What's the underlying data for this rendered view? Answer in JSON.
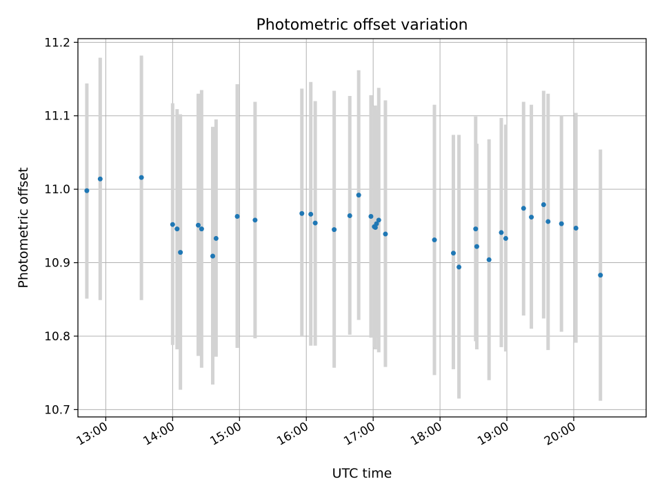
{
  "chart_data": {
    "type": "scatter",
    "title": "Photometric offset variation",
    "xlabel": "UTC time",
    "ylabel": "Photometric offset",
    "x_tick_labels": [
      "13:00",
      "14:00",
      "15:00",
      "16:00",
      "17:00",
      "18:00",
      "19:00",
      "20:00"
    ],
    "y_tick_labels": [
      "10.7",
      "10.8",
      "10.9",
      "11.0",
      "11.1",
      "11.2"
    ],
    "xlim": [
      "12:35",
      "21:05"
    ],
    "ylim": [
      10.69,
      11.205
    ],
    "grid": true,
    "error_bar_color": "#d3d3d3",
    "point_color": "#1f77b4",
    "points": [
      {
        "x": "12:43",
        "y": 10.998,
        "lo": 10.851,
        "hi": 11.144
      },
      {
        "x": "12:55",
        "y": 11.014,
        "lo": 10.849,
        "hi": 11.179
      },
      {
        "x": "13:32",
        "y": 11.016,
        "lo": 10.849,
        "hi": 11.182
      },
      {
        "x": "14:00",
        "y": 10.952,
        "lo": 10.788,
        "hi": 11.117
      },
      {
        "x": "14:04",
        "y": 10.946,
        "lo": 10.782,
        "hi": 11.109
      },
      {
        "x": "14:07",
        "y": 10.914,
        "lo": 10.727,
        "hi": 11.102
      },
      {
        "x": "14:23",
        "y": 10.951,
        "lo": 10.773,
        "hi": 11.13
      },
      {
        "x": "14:26",
        "y": 10.946,
        "lo": 10.757,
        "hi": 11.135
      },
      {
        "x": "14:36",
        "y": 10.909,
        "lo": 10.734,
        "hi": 11.085
      },
      {
        "x": "14:39",
        "y": 10.933,
        "lo": 10.772,
        "hi": 11.095
      },
      {
        "x": "14:58",
        "y": 10.963,
        "lo": 10.784,
        "hi": 11.143
      },
      {
        "x": "15:14",
        "y": 10.958,
        "lo": 10.797,
        "hi": 11.119
      },
      {
        "x": "15:56",
        "y": 10.967,
        "lo": 10.8,
        "hi": 11.137
      },
      {
        "x": "16:04",
        "y": 10.966,
        "lo": 10.787,
        "hi": 11.146
      },
      {
        "x": "16:08",
        "y": 10.954,
        "lo": 10.787,
        "hi": 11.12
      },
      {
        "x": "16:25",
        "y": 10.945,
        "lo": 10.757,
        "hi": 11.134
      },
      {
        "x": "16:39",
        "y": 10.964,
        "lo": 10.802,
        "hi": 11.127
      },
      {
        "x": "16:47",
        "y": 10.992,
        "lo": 10.822,
        "hi": 11.162
      },
      {
        "x": "16:58",
        "y": 10.963,
        "lo": 10.798,
        "hi": 11.128
      },
      {
        "x": "17:01",
        "y": 10.949,
        "lo": 10.785,
        "hi": 11.113
      },
      {
        "x": "17:02",
        "y": 10.948,
        "lo": 10.782,
        "hi": 11.114
      },
      {
        "x": "17:03",
        "y": 10.953,
        "lo": 10.798,
        "hi": 11.108
      },
      {
        "x": "17:05",
        "y": 10.958,
        "lo": 10.778,
        "hi": 11.138
      },
      {
        "x": "17:11",
        "y": 10.939,
        "lo": 10.758,
        "hi": 11.121
      },
      {
        "x": "17:55",
        "y": 10.931,
        "lo": 10.747,
        "hi": 11.115
      },
      {
        "x": "18:12",
        "y": 10.913,
        "lo": 10.755,
        "hi": 11.074
      },
      {
        "x": "18:17",
        "y": 10.894,
        "lo": 10.715,
        "hi": 11.074
      },
      {
        "x": "18:32",
        "y": 10.946,
        "lo": 10.793,
        "hi": 11.099
      },
      {
        "x": "18:33",
        "y": 10.922,
        "lo": 10.782,
        "hi": 11.062
      },
      {
        "x": "18:44",
        "y": 10.904,
        "lo": 10.74,
        "hi": 11.068
      },
      {
        "x": "18:55",
        "y": 10.941,
        "lo": 10.785,
        "hi": 11.097
      },
      {
        "x": "18:59",
        "y": 10.933,
        "lo": 10.779,
        "hi": 11.088
      },
      {
        "x": "19:15",
        "y": 10.974,
        "lo": 10.828,
        "hi": 11.119
      },
      {
        "x": "19:22",
        "y": 10.962,
        "lo": 10.81,
        "hi": 11.115
      },
      {
        "x": "19:33",
        "y": 10.979,
        "lo": 10.824,
        "hi": 11.134
      },
      {
        "x": "19:37",
        "y": 10.956,
        "lo": 10.781,
        "hi": 11.13
      },
      {
        "x": "19:49",
        "y": 10.953,
        "lo": 10.806,
        "hi": 11.1
      },
      {
        "x": "20:02",
        "y": 10.947,
        "lo": 10.791,
        "hi": 11.104
      },
      {
        "x": "20:24",
        "y": 10.883,
        "lo": 10.712,
        "hi": 11.054
      }
    ]
  }
}
